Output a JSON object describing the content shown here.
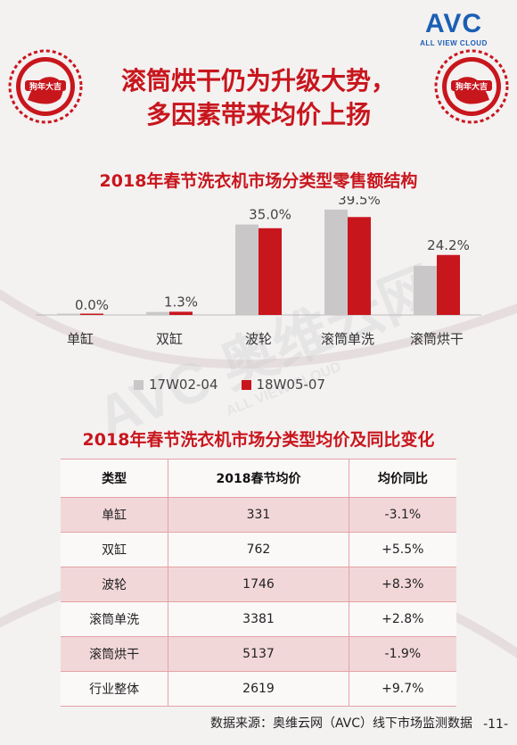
{
  "logo": {
    "main": "AVC",
    "sub": "ALL VIEW CLOUD"
  },
  "title": {
    "line1": "滚筒烘干仍为升级大势，",
    "line2": "多因素带来均价上扬"
  },
  "decor": {
    "badge_text": "狗年大吉"
  },
  "watermark": {
    "main": "AVC 奥维云网",
    "sub": "ALL VIEW CLOUD"
  },
  "chart_data": {
    "type": "bar",
    "title": "2018年春节洗衣机市场分类型零售额结构",
    "categories": [
      "单缸",
      "双缸",
      "波轮",
      "滚筒单洗",
      "滚筒烘干"
    ],
    "series": [
      {
        "name": "17W02-04",
        "values": [
          0.0,
          1.2,
          36.5,
          42.5,
          19.8
        ],
        "color": "#c9c7c8"
      },
      {
        "name": "18W05-07",
        "values": [
          0.0,
          1.3,
          35.0,
          39.5,
          24.2
        ],
        "color": "#c8161d"
      }
    ],
    "data_labels": [
      "0.0%",
      "1.3%",
      "35.0%",
      "39.5%",
      "24.2%"
    ],
    "ylim": [
      0,
      45
    ],
    "legend_position": "bottom"
  },
  "table": {
    "title": "2018年春节洗衣机市场分类型均价及同比变化",
    "headers": [
      "类型",
      "2018春节均价",
      "均价同比"
    ],
    "rows": [
      [
        "单缸",
        "331",
        "-3.1%"
      ],
      [
        "双缸",
        "762",
        "+5.5%"
      ],
      [
        "波轮",
        "1746",
        "+8.3%"
      ],
      [
        "滚筒单洗",
        "3381",
        "+2.8%"
      ],
      [
        "滚筒烘干",
        "5137",
        "-1.9%"
      ],
      [
        "行业整体",
        "2619",
        "+9.7%"
      ]
    ]
  },
  "footer": {
    "source": "数据来源：奥维云网（AVC）线下市场监测数据",
    "page": "-11-"
  }
}
